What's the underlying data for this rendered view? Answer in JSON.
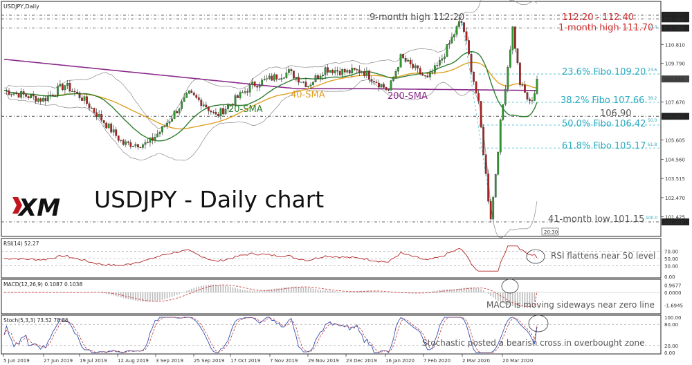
{
  "header": {
    "symbol_label": "USDJPY,Daily"
  },
  "logo": {
    "text": "XM"
  },
  "colors": {
    "candle_up": "#2e9a2e",
    "candle_down": "#b22222",
    "sma20": "#2f7d2f",
    "sma40": "#e0a020",
    "sma200": "#8a2a8a",
    "bollinger": "#888888",
    "fibo": "#3bbfd0",
    "rsi": "#b22222",
    "macd_hist": "#bbbbbb",
    "macd_signal": "#d04040",
    "stoch_k": "#3050b0",
    "stoch_d": "#c03030",
    "annotation_red": "#d03030",
    "annotation_cyan": "#29aac0",
    "annotation_gray": "#555555"
  },
  "main_panel": {
    "title": "USDJPY - Daily chart",
    "price_ticks": [
      "112.400",
      "112.200",
      "111.700",
      "110.810",
      "109.790",
      "108.930",
      "107.670",
      "106.900",
      "105.605",
      "104.560",
      "103.515",
      "102.470",
      "101.425",
      "101.150"
    ],
    "current_price": "108.930",
    "annotations": {
      "nine_month_high": "9-month high 112.20",
      "top_level": "112.20 - 112.40",
      "one_month_high": "1-month high 111.70",
      "fib_236": "23.6% Fibo 109.20",
      "fib_382": "38.2% Fibo 107.66",
      "level_1069": "106.90",
      "fib_500": "50.0% Fibo 106.42",
      "fib_618": "61.8% Fibo 105.17",
      "low": "41-month low 101.15",
      "sma20": "20-SMA",
      "sma40": "40-SMA",
      "sma200": "200-SMA",
      "fib_small_236": "23.6",
      "fib_small_382": "38.2",
      "fib_small_500": "50.0",
      "fib_small_618": "61.8",
      "fib_small_100": "100.0",
      "fib_small_0": "0.0",
      "time_box": "20:30"
    }
  },
  "rsi_panel": {
    "label": "RSI(14) 52.27",
    "ticks": [
      "70.00",
      "50.00",
      "30.00",
      "0.00"
    ],
    "note": "RSI flattens near 50 level"
  },
  "macd_panel": {
    "label": "MACD(12,26,9) 0.1087 0.1038",
    "ticks": [
      "0.9677",
      "0.0000",
      "-1.6945"
    ],
    "note": "MACD is moving sideways near zero line"
  },
  "stoch_panel": {
    "label": "Stoch(5,3,3) 73.52 78.86",
    "ticks": [
      "100.00",
      "80.00",
      "20.00",
      "0.00"
    ],
    "note": "Stochastic posted a bearish cross in overbought zone"
  },
  "x_axis": {
    "dates": [
      "5 Jun 2019",
      "27 Jun 2019",
      "19 Jul 2019",
      "12 Aug 2019",
      "3 Sep 2019",
      "25 Sep 2019",
      "17 Oct 2019",
      "7 Nov 2019",
      "29 Nov 2019",
      "23 Dec 2019",
      "16 Jan 2020",
      "7 Feb 2020",
      "2 Mar 2020",
      "20 Mar 2020"
    ]
  },
  "chart_data": {
    "type": "candlestick",
    "title": "USDJPY - Daily chart",
    "ylim": [
      101.15,
      112.4
    ],
    "key_levels": {
      "high_9m": 112.2,
      "resistance_zone": [
        112.2,
        112.4
      ],
      "high_1m": 111.7,
      "fib_23_6": 109.2,
      "fib_38_2": 107.66,
      "support": 106.9,
      "fib_50_0": 106.42,
      "fib_61_8": 105.17,
      "low_41m": 101.15
    },
    "current_price": 108.93,
    "anchors": [
      {
        "date": "5 Jun 2019",
        "close": 108.3
      },
      {
        "date": "27 Jun 2019",
        "close": 107.8
      },
      {
        "date": "10 Jul 2019",
        "close": 108.6
      },
      {
        "date": "19 Jul 2019",
        "close": 107.9
      },
      {
        "date": "1 Aug 2019",
        "close": 106.6
      },
      {
        "date": "12 Aug 2019",
        "close": 105.4
      },
      {
        "date": "26 Aug 2019",
        "close": 105.4
      },
      {
        "date": "3 Sep 2019",
        "close": 106.2
      },
      {
        "date": "18 Sep 2019",
        "close": 108.1
      },
      {
        "date": "25 Sep 2019",
        "close": 107.6
      },
      {
        "date": "3 Oct 2019",
        "close": 106.9
      },
      {
        "date": "17 Oct 2019",
        "close": 108.6
      },
      {
        "date": "7 Nov 2019",
        "close": 109.3
      },
      {
        "date": "20 Nov 2019",
        "close": 108.6
      },
      {
        "date": "29 Nov 2019",
        "close": 109.5
      },
      {
        "date": "12 Dec 2019",
        "close": 109.3
      },
      {
        "date": "23 Dec 2019",
        "close": 109.4
      },
      {
        "date": "8 Jan 2020",
        "close": 108.3
      },
      {
        "date": "16 Jan 2020",
        "close": 110.1
      },
      {
        "date": "31 Jan 2020",
        "close": 108.9
      },
      {
        "date": "7 Feb 2020",
        "close": 109.8
      },
      {
        "date": "20 Feb 2020",
        "close": 112.2
      },
      {
        "date": "2 Mar 2020",
        "close": 107.5
      },
      {
        "date": "9 Mar 2020",
        "close": 101.15
      },
      {
        "date": "13 Mar 2020",
        "close": 106.5
      },
      {
        "date": "20 Mar 2020",
        "close": 111.7
      },
      {
        "date": "25 Mar 2020",
        "close": 108.7
      },
      {
        "date": "31 Mar 2020",
        "close": 107.6
      },
      {
        "date": "2 Apr 2020",
        "close": 108.2
      },
      {
        "date": "8 Apr 2020",
        "close": 108.93
      }
    ],
    "indicators": {
      "rsi_14": 52.27,
      "macd": {
        "macd": 0.1087,
        "signal": 0.1038
      },
      "stochastic": {
        "k": 73.52,
        "d": 78.86
      }
    }
  }
}
